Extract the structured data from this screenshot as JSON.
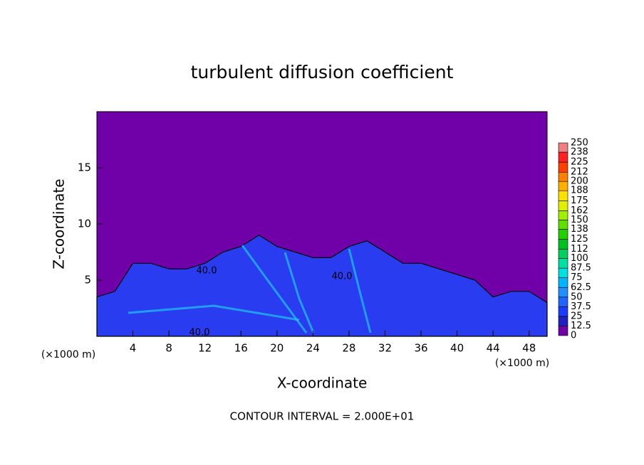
{
  "chart_data": {
    "type": "contour",
    "title": "turbulent diffusion coefficient",
    "xlabel": "X-coordinate",
    "ylabel": "Z-coordinate",
    "x_unit": "(×1000 m)",
    "footnote": "CONTOUR INTERVAL = 2.000E+01",
    "xlim": [
      0,
      50
    ],
    "ylim": [
      0,
      20
    ],
    "xticks": [
      4,
      8,
      12,
      16,
      20,
      24,
      28,
      32,
      36,
      40,
      44,
      48
    ],
    "yticks": [
      5,
      10,
      15
    ],
    "background_color": "#7000a8",
    "layer_color": "#2a3cf0",
    "x": [
      0,
      2,
      4,
      6,
      8,
      10,
      12,
      14,
      16,
      18,
      20,
      22,
      24,
      26,
      28,
      30,
      32,
      34,
      36,
      38,
      40,
      42,
      44,
      46,
      48,
      50
    ],
    "values": [
      3.5,
      4,
      6.5,
      6.5,
      6,
      6,
      6.5,
      7.5,
      8,
      9,
      8,
      7.5,
      7,
      7,
      8,
      8.5,
      7.5,
      6.5,
      6.5,
      6,
      5.5,
      5,
      3.5,
      4,
      4,
      3
    ],
    "contour_labels": [
      "40.0",
      "40.0",
      "40.0"
    ],
    "colorbar": {
      "lim": [
        0,
        250
      ],
      "ticks": [
        0,
        12.5,
        25,
        37.5,
        50,
        62.5,
        75,
        87.5,
        100,
        112,
        125,
        138,
        150,
        162,
        175,
        188,
        200,
        212,
        225,
        238,
        250
      ],
      "colors": [
        "#7000a8",
        "#2020c0",
        "#1a3cff",
        "#1e64ff",
        "#1e90ff",
        "#00b4ff",
        "#00e0e0",
        "#00e0a0",
        "#00d060",
        "#00c020",
        "#20d000",
        "#60e000",
        "#a0f000",
        "#e0f000",
        "#ffe000",
        "#ffb000",
        "#ff8000",
        "#ff4000",
        "#ff2020",
        "#f08080"
      ]
    }
  }
}
